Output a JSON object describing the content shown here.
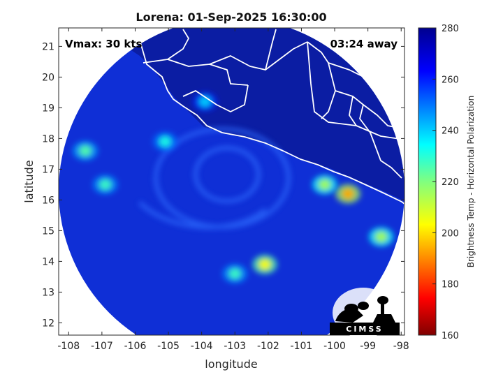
{
  "title": "Lorena: 01-Sep-2025 16:30:00",
  "annotations": {
    "vmax": "Vmax: 30 kts",
    "time_away": "03:24 away"
  },
  "axes": {
    "xlabel": "longitude",
    "ylabel": "latitude",
    "xticks": [
      "-108",
      "-107",
      "-106",
      "-105",
      "-104",
      "-103",
      "-102",
      "-101",
      "-100",
      "-99",
      "-98"
    ],
    "yticks": [
      "12",
      "13",
      "14",
      "15",
      "16",
      "17",
      "18",
      "19",
      "20",
      "21"
    ],
    "xlim": [
      -108.3,
      -97.9
    ],
    "ylim": [
      11.6,
      21.6
    ]
  },
  "colorbar": {
    "label": "Brightness Temp - Horizontal Polarization",
    "ticks": [
      "160",
      "180",
      "200",
      "220",
      "240",
      "260",
      "280"
    ],
    "range": [
      160,
      280
    ],
    "colormap": "jet"
  },
  "logo": {
    "text": "CIMSS"
  },
  "colors": {
    "background_cold": "#0f2fd6",
    "outside_swath": "#ffffff",
    "coast": "#ffffff",
    "warm_core": "#d81b0f"
  },
  "map_data": {
    "swath_center": [
      -103.1,
      16.3
    ],
    "swath_radius_deg": 5.2,
    "storm_center": [
      -103.4,
      16.9
    ],
    "features": [
      {
        "lon": -99.6,
        "lat": 16.2,
        "tb": 195
      },
      {
        "lon": -102.1,
        "lat": 13.9,
        "tb": 205
      },
      {
        "lon": -107.5,
        "lat": 17.6,
        "tb": 225
      },
      {
        "lon": -106.9,
        "lat": 16.5,
        "tb": 228
      },
      {
        "lon": -105.1,
        "lat": 17.9,
        "tb": 232
      },
      {
        "lon": -103.0,
        "lat": 13.6,
        "tb": 228
      },
      {
        "lon": -100.3,
        "lat": 16.5,
        "tb": 215
      },
      {
        "lon": -98.6,
        "lat": 14.8,
        "tb": 215
      },
      {
        "lon": -103.9,
        "lat": 19.2,
        "tb": 240
      }
    ]
  }
}
